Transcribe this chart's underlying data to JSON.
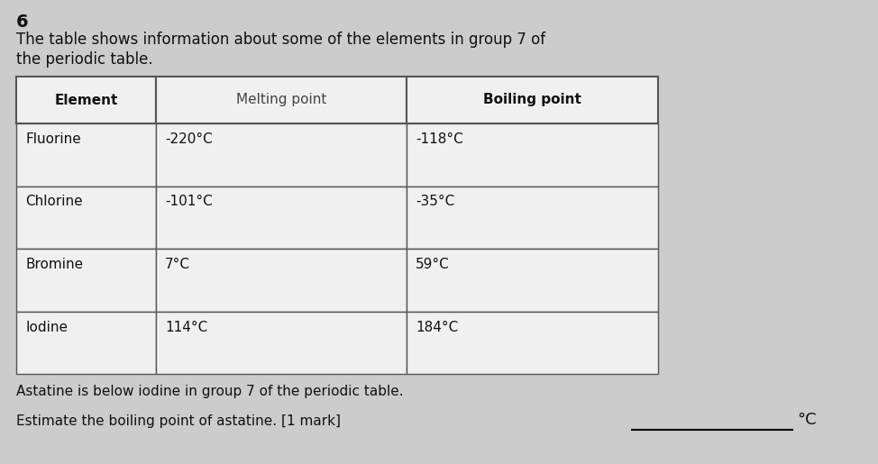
{
  "question_number": "6",
  "intro_text_line1": "The table shows information about some of the elements in group 7 of",
  "intro_text_line2": "the periodic table.",
  "col_headers": [
    "Element",
    "Melting point",
    "Boiling point"
  ],
  "rows": [
    [
      "Fluorine",
      "-220°C",
      "-118°C"
    ],
    [
      "Chlorine",
      "-101°C",
      "-35°C"
    ],
    [
      "Bromine",
      "7°C",
      "59°C"
    ],
    [
      "Iodine",
      "114°C",
      "184°C"
    ]
  ],
  "below_text": "Astatine is below iodine in group 7 of the periodic table.",
  "question_text": "Estimate the boiling point of astatine. [1 mark]",
  "answer_suffix": "°C",
  "bg_color": "#cccccc",
  "cell_bg": "#f0f0f0",
  "border_color": "#555555",
  "text_color": "#111111",
  "font_size_intro": 12,
  "font_size_table": 11,
  "font_size_header": 11,
  "font_size_below": 11,
  "font_size_qnum": 14
}
